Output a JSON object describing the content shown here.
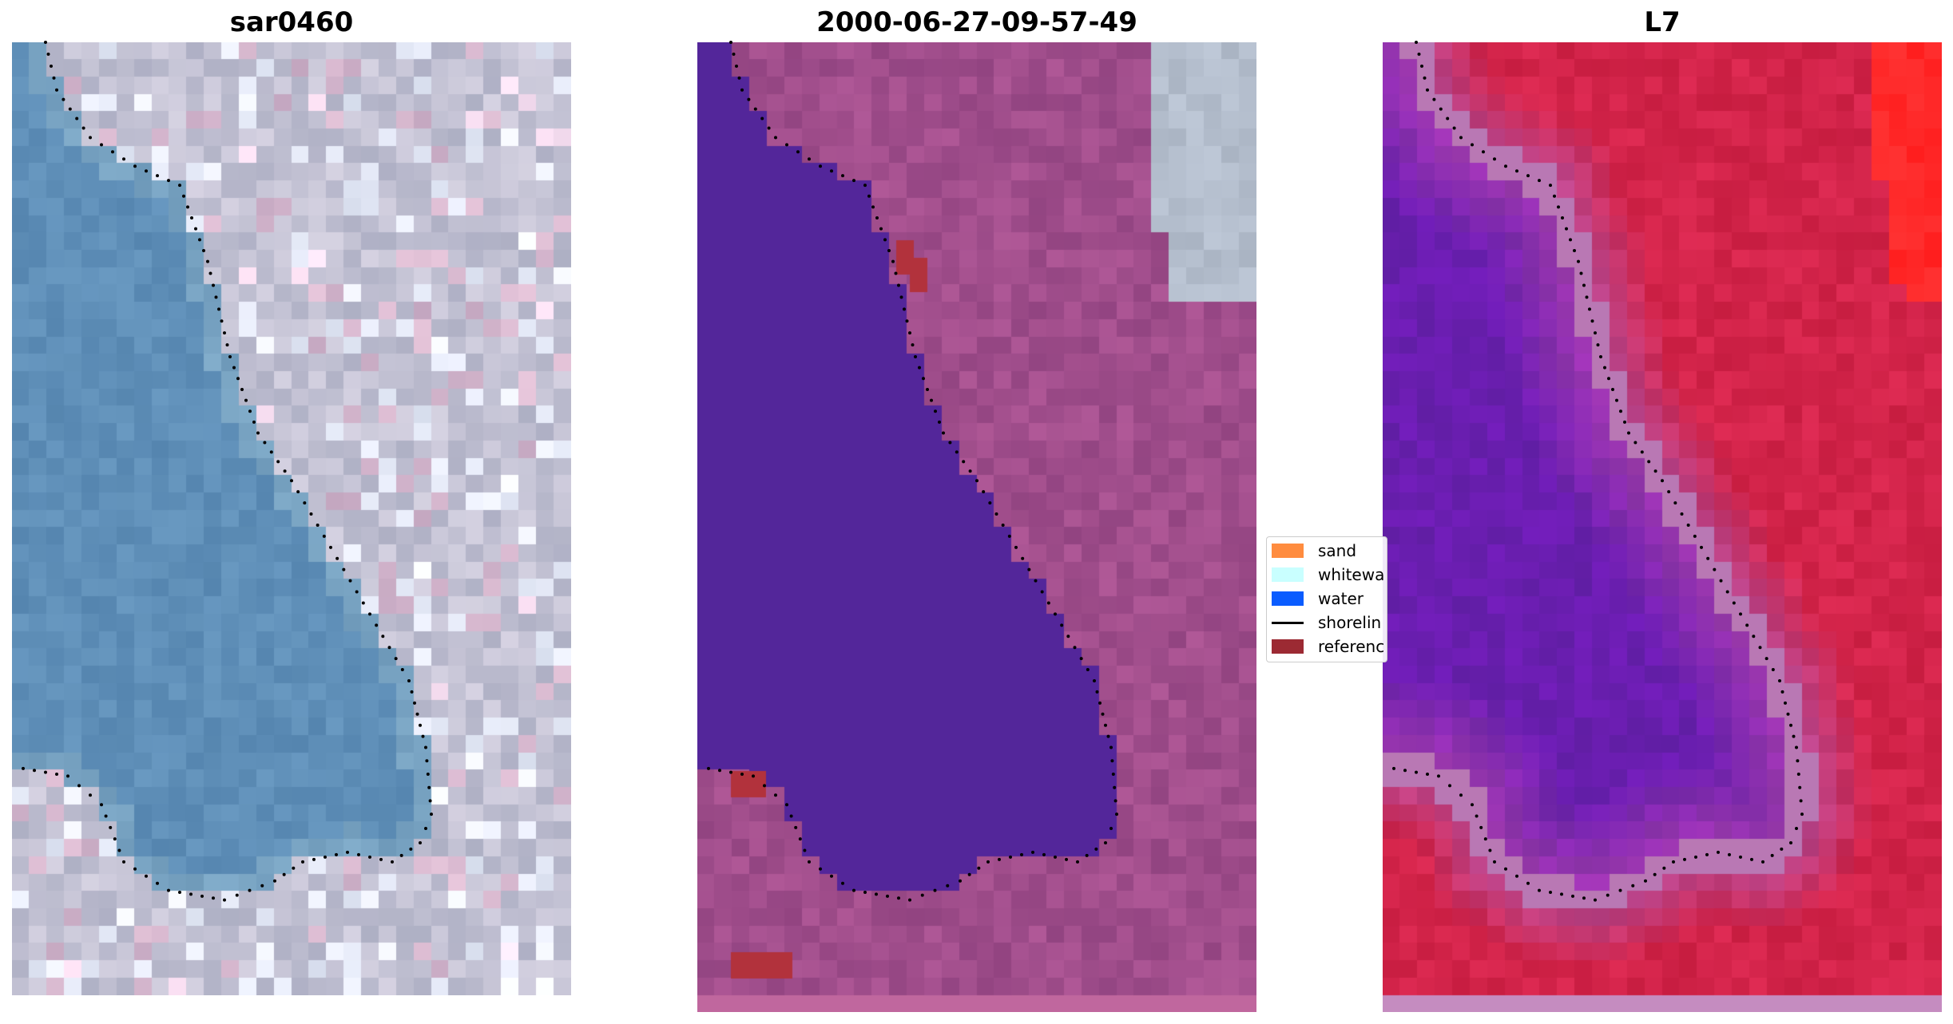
{
  "panels": [
    {
      "title": "sar0460",
      "style": "rgb"
    },
    {
      "title": "2000-06-27-09-57-49",
      "style": "classified"
    },
    {
      "title": "L7",
      "style": "index"
    }
  ],
  "legend": {
    "items": [
      {
        "label": "sand",
        "kind": "patch",
        "color": "#ff8c3f"
      },
      {
        "label": "whitewa",
        "kind": "patch",
        "color": "#c9ffff"
      },
      {
        "label": "water",
        "kind": "patch",
        "color": "#0a5cff"
      },
      {
        "label": "shorelin",
        "kind": "line",
        "color": "#000000"
      },
      {
        "label": "referenc",
        "kind": "patch",
        "color": "#9c2a33"
      }
    ]
  },
  "colors": {
    "water_rgb": "#5f8fb8",
    "land_rgb": "#c2c1d3",
    "water_class": "#53269a",
    "land_class": "#a14e8c",
    "land_index": "#d3244a",
    "water_index": "#6a1eb0",
    "reference": "#b2323c"
  }
}
